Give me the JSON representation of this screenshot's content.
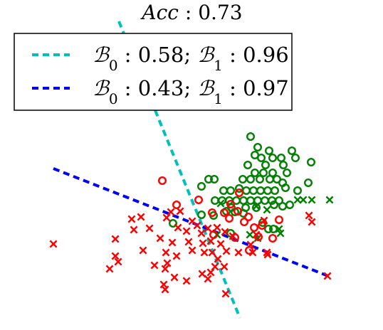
{
  "chart_data": {
    "type": "scatter",
    "title": "Acc : 0.73",
    "xlabel": "",
    "ylabel": "",
    "grid": false,
    "axes_visible": false,
    "legend_position": "top-left",
    "series": [
      {
        "marker": "o",
        "color": "#008000",
        "points": [
          [
            352,
            192
          ],
          [
            362,
            207
          ],
          [
            378,
            212
          ],
          [
            410,
            212
          ],
          [
            358,
            218
          ],
          [
            367,
            222
          ],
          [
            383,
            222
          ],
          [
            395,
            222
          ],
          [
            348,
            232
          ],
          [
            373,
            232
          ],
          [
            398,
            232
          ],
          [
            415,
            222
          ],
          [
            437,
            228
          ],
          [
            358,
            243
          ],
          [
            370,
            243
          ],
          [
            383,
            243
          ],
          [
            403,
            243
          ],
          [
            293,
            252
          ],
          [
            301,
            252
          ],
          [
            341,
            252
          ],
          [
            352,
            252
          ],
          [
            365,
            252
          ],
          [
            379,
            252
          ],
          [
            389,
            252
          ],
          [
            397,
            257
          ],
          [
            433,
            257
          ],
          [
            283,
            262
          ],
          [
            314,
            268
          ],
          [
            324,
            268
          ],
          [
            336,
            265
          ],
          [
            346,
            268
          ],
          [
            356,
            268
          ],
          [
            366,
            268
          ],
          [
            376,
            268
          ],
          [
            386,
            268
          ],
          [
            401,
            264
          ],
          [
            418,
            268
          ],
          [
            302,
            282
          ],
          [
            312,
            282
          ],
          [
            322,
            282
          ],
          [
            332,
            282
          ],
          [
            342,
            282
          ],
          [
            352,
            282
          ],
          [
            362,
            282
          ],
          [
            372,
            282
          ],
          [
            382,
            282
          ],
          [
            392,
            282
          ],
          [
            407,
            288
          ],
          [
            325,
            292
          ],
          [
            345,
            292
          ],
          [
            360,
            292
          ],
          [
            385,
            288
          ],
          [
            397,
            290
          ],
          [
            318,
            297
          ],
          [
            330,
            298
          ],
          [
            342,
            300
          ],
          [
            283,
            302
          ],
          [
            300,
            303
          ],
          [
            243,
            314
          ],
          [
            369,
            313
          ],
          [
            377,
            322
          ],
          [
            324,
            328
          ],
          [
            384,
            322
          ]
        ]
      },
      {
        "marker": "x",
        "color": "#008000",
        "points": [
          [
            463,
            281
          ],
          [
            438,
            281
          ],
          [
            426,
            281
          ],
          [
            418,
            281
          ],
          [
            310,
            286
          ],
          [
            360,
            290
          ],
          [
            375,
            295
          ],
          [
            392,
            322
          ],
          [
            394,
            328
          ],
          [
            305,
            330
          ],
          [
            351,
            330
          ],
          [
            362,
            335
          ]
        ]
      },
      {
        "marker": "o",
        "color": "#ff0000",
        "points": [
          [
            228,
            254
          ],
          [
            336,
            271
          ],
          [
            279,
            281
          ],
          [
            248,
            288
          ],
          [
            324,
            287
          ],
          [
            334,
            297
          ],
          [
            298,
            299
          ],
          [
            315,
            299
          ],
          [
            349,
            305
          ],
          [
            322,
            307
          ],
          [
            343,
            312
          ],
          [
            357,
            320
          ],
          [
            363,
            333
          ],
          [
            383,
            335
          ],
          [
            392,
            309
          ],
          [
            368,
            317
          ],
          [
            300,
            330
          ],
          [
            330,
            334
          ],
          [
            350,
            352
          ]
        ]
      },
      {
        "marker": "x",
        "color": "#ff0000",
        "points": [
          [
            75,
            343
          ],
          [
            162,
            336
          ],
          [
            185,
            308
          ],
          [
            198,
            305
          ],
          [
            210,
            321
          ],
          [
            188,
            323
          ],
          [
            240,
            298
          ],
          [
            234,
            306
          ],
          [
            253,
            297
          ],
          [
            250,
            320
          ],
          [
            270,
            311
          ],
          [
            277,
            317
          ],
          [
            262,
            325
          ],
          [
            283,
            328
          ],
          [
            292,
            321
          ],
          [
            305,
            320
          ],
          [
            316,
            326
          ],
          [
            327,
            332
          ],
          [
            265,
            340
          ],
          [
            242,
            341
          ],
          [
            225,
            335
          ],
          [
            233,
            355
          ],
          [
            248,
            360
          ],
          [
            270,
            352
          ],
          [
            285,
            342
          ],
          [
            296,
            339
          ],
          [
            310,
            343
          ],
          [
            318,
            353
          ],
          [
            335,
            355
          ],
          [
            355,
            355
          ],
          [
            376,
            358
          ],
          [
            162,
            360
          ],
          [
            154,
            378
          ],
          [
            166,
            368
          ],
          [
            201,
            352
          ],
          [
            232,
            378
          ],
          [
            217,
            373
          ],
          [
            245,
            390
          ],
          [
            230,
            400
          ],
          [
            232,
            407
          ],
          [
            262,
            395
          ],
          [
            284,
            385
          ],
          [
            296,
            383
          ],
          [
            292,
            392
          ],
          [
            302,
            375
          ],
          [
            315,
            375
          ],
          [
            306,
            364
          ],
          [
            317,
            413
          ],
          [
            434,
            303
          ],
          [
            438,
            312
          ],
          [
            460,
            388
          ],
          [
            360,
            330
          ],
          [
            352,
            344
          ],
          [
            371,
            310
          ],
          [
            375,
            355
          ],
          [
            235,
            370
          ],
          [
            287,
            355
          ],
          [
            298,
            355
          ]
        ]
      }
    ],
    "lines": [
      {
        "style": "dashed",
        "color": "#00bfbf",
        "points": [
          [
            167,
            30
          ],
          [
            337,
            447
          ]
        ]
      },
      {
        "style": "dashed",
        "color": "#0000ff",
        "points": [
          [
            75,
            237
          ],
          [
            466,
            390
          ]
        ]
      }
    ],
    "legend": {
      "entries": [
        {
          "color": "#00bfbf",
          "style": "dashed",
          "label": "B0 : 0.58; B1 : 0.96",
          "parts": [
            "ℬ",
            "0",
            " : 0.58; ",
            "ℬ",
            "1",
            " : 0.96"
          ]
        },
        {
          "color": "#0000ff",
          "style": "dashed",
          "label": "B0 : 0.43; B1 : 0.97",
          "parts": [
            "ℬ",
            "0",
            " : 0.43; ",
            "ℬ",
            "1",
            " : 0.97"
          ]
        }
      ]
    }
  }
}
